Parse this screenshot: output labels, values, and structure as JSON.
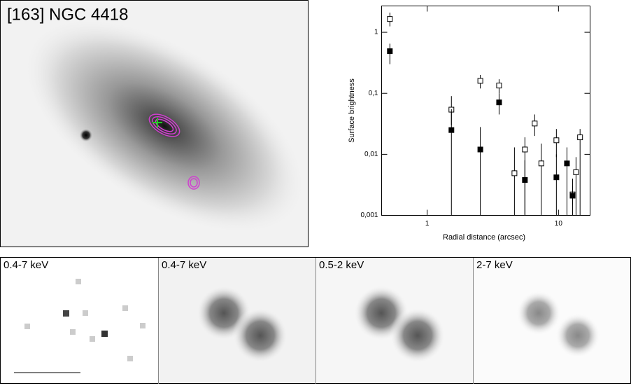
{
  "image_title": "[163] NGC 4418",
  "panels": [
    "0.4-7 keV",
    "0.4-7 keV",
    "0.5-2 keV",
    "2-7 keV"
  ],
  "chart_data": {
    "type": "scatter",
    "xlabel": "Radial distance (arcsec)",
    "ylabel": "Surface brightness",
    "xlog": true,
    "ylog": true,
    "xlim": [
      0.45,
      17.4
    ],
    "ylim": [
      0.001,
      2.7
    ],
    "xticks": [
      1,
      10
    ],
    "yticks": [
      {
        "value": 0.001,
        "label": "0,001"
      },
      {
        "value": 0.01,
        "label": "0,01"
      },
      {
        "value": 0.1,
        "label": "0,1"
      },
      1
    ],
    "series": [
      {
        "marker": "open",
        "color": "#000000",
        "x": [
          0.52,
          1.53,
          2.54,
          3.53,
          4.62,
          5.55,
          6.59,
          7.4,
          9.64,
          12.8,
          13.6,
          14.6
        ],
        "values": [
          1.65,
          0.054,
          0.16,
          0.134,
          0.0049,
          0.012,
          0.032,
          0.0071,
          0.017,
          0.0022,
          0.0051,
          0.019
        ],
        "err_hi": [
          2.1,
          0.09,
          0.2,
          0.17,
          0.013,
          0.019,
          0.045,
          0.015,
          0.026,
          0.003,
          0.009,
          0.026
        ],
        "err_lo": [
          1.25,
          0.03,
          0.12,
          0.1,
          0.001,
          0.001,
          0.02,
          0.001,
          0.009,
          0.0015,
          0.001,
          0.001
        ]
      },
      {
        "marker": "filled",
        "color": "#000000",
        "x": [
          0.52,
          1.53,
          2.54,
          3.53,
          5.55,
          9.64,
          11.6,
          12.8
        ],
        "values": [
          0.49,
          0.025,
          0.012,
          0.071,
          0.0038,
          0.0042,
          0.0071,
          0.0021
        ],
        "err_hi": [
          0.65,
          0.055,
          0.028,
          0.1,
          0.008,
          0.01,
          0.013,
          0.004
        ],
        "err_lo": [
          0.3,
          0.001,
          0.001,
          0.045,
          0.001,
          0.001,
          0.001,
          0.001
        ]
      }
    ]
  }
}
